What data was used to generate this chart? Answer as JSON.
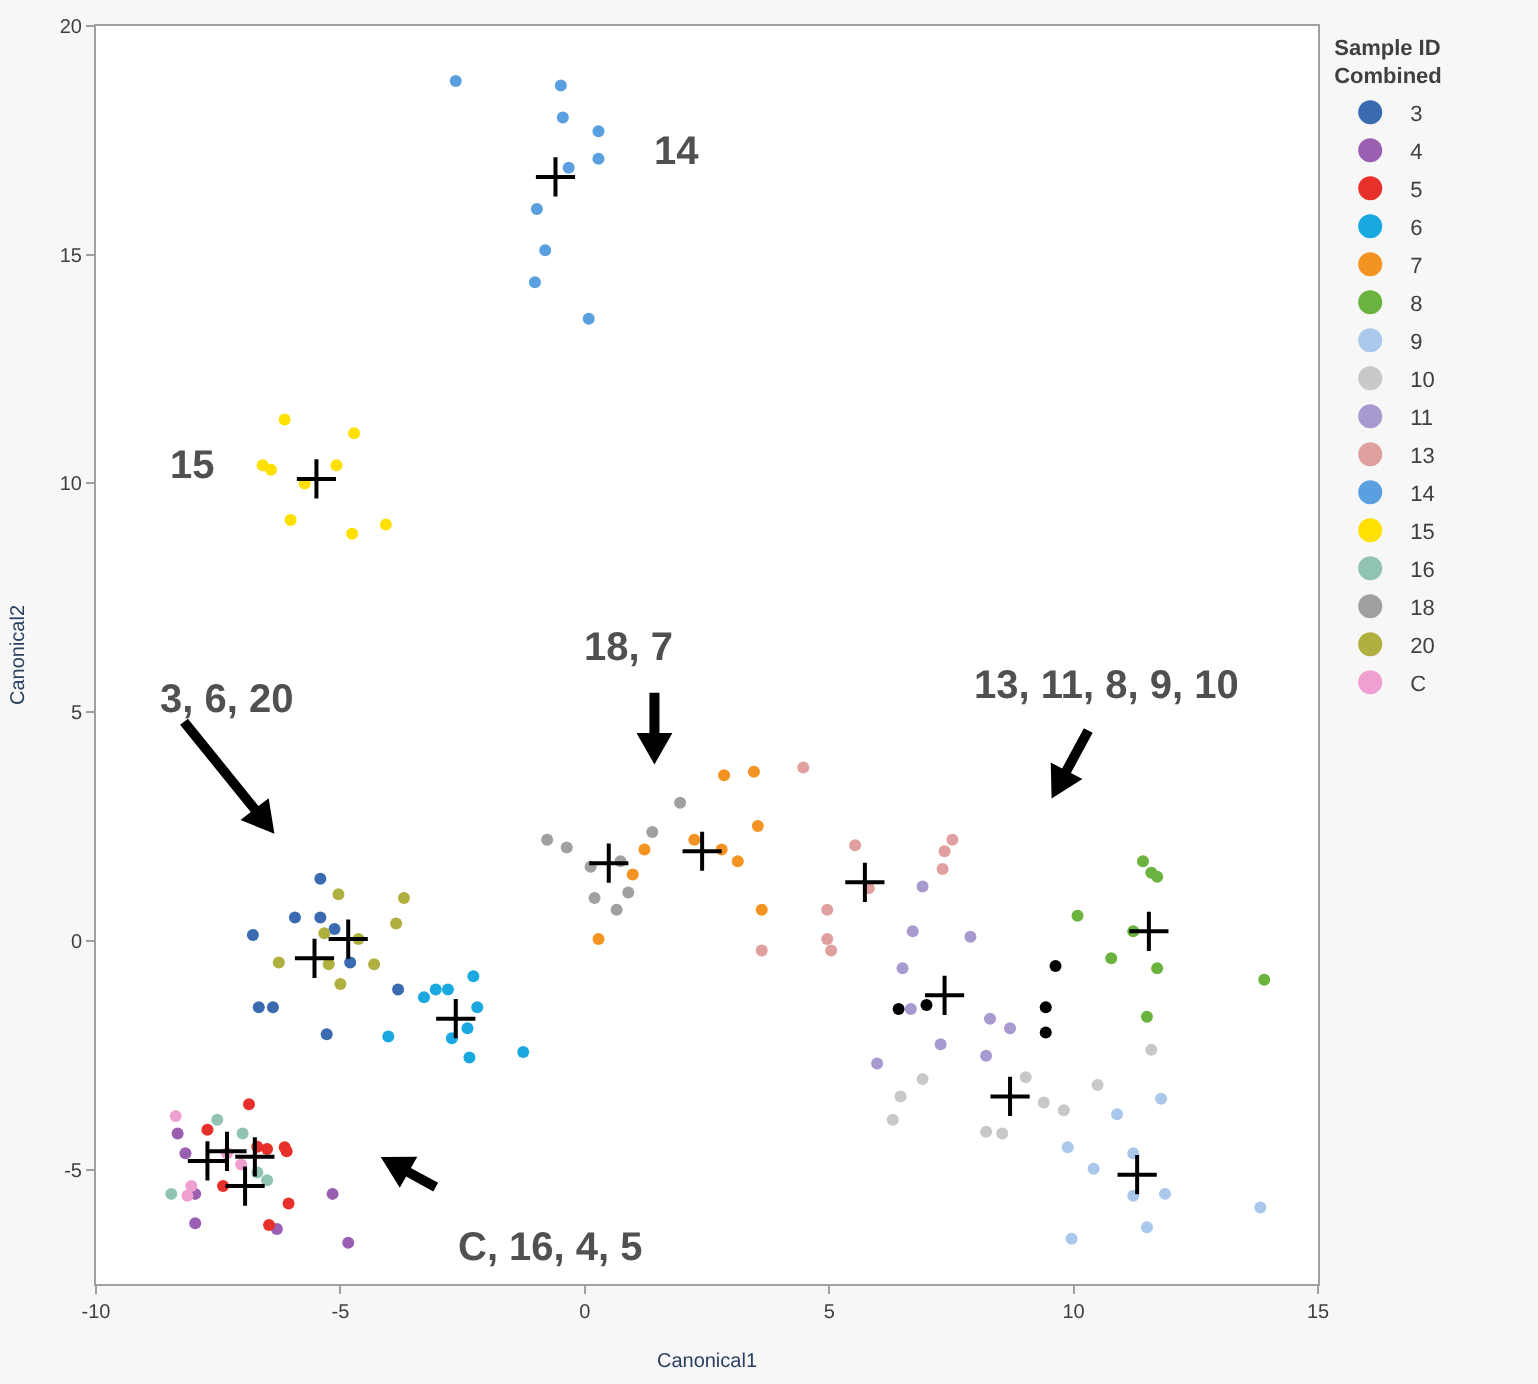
{
  "chart_data": {
    "type": "scatter",
    "xlabel": "Canonical1",
    "ylabel": "Canonical2",
    "legend_title": "Sample ID\nCombined",
    "legend": "top right",
    "marker": "circle",
    "xlim": [
      -10,
      15
    ],
    "xticks": [
      -10,
      -5,
      0,
      5,
      10,
      15
    ],
    "ylim": [
      -7.5,
      20
    ],
    "yticks": [
      -5,
      0,
      5,
      10,
      15,
      20
    ],
    "series": [
      {
        "name": "3",
        "color": "#3a6ab0",
        "x": [
          -5.41,
          -5.93,
          -5.41,
          -5.12,
          -6.79,
          -4.8,
          -3.82,
          -6.67,
          -6.38,
          -5.28
        ],
        "values": [
          1.36,
          0.51,
          0.51,
          0.26,
          0.13,
          -0.47,
          -1.06,
          -1.45,
          -1.45,
          -2.04
        ]
      },
      {
        "name": "4",
        "color": "#9a5fb0",
        "x": [
          -8.33,
          -8.17,
          -7.97,
          -7.97,
          -6.3,
          -5.16,
          -4.84
        ],
        "values": [
          -4.21,
          -4.64,
          -5.53,
          -6.17,
          -6.3,
          -5.53,
          -6.6
        ]
      },
      {
        "name": "5",
        "color": "#e8302a",
        "x": [
          -6.87,
          -7.72,
          -6.5,
          -6.14,
          -6.1,
          -7.4,
          -6.06,
          -6.46,
          -6.7
        ],
        "values": [
          -3.57,
          -4.13,
          -4.55,
          -4.51,
          -4.6,
          -5.36,
          -5.74,
          -6.21,
          -4.5
        ]
      },
      {
        "name": "6",
        "color": "#19a9e0",
        "x": [
          -2.28,
          -2.8,
          -3.05,
          -3.29,
          -2.2,
          -2.4,
          -2.72,
          -4.02,
          -2.36,
          -1.26
        ],
        "values": [
          -0.77,
          -1.06,
          -1.06,
          -1.23,
          -1.45,
          -1.91,
          -2.13,
          -2.09,
          -2.55,
          -2.43
        ]
      },
      {
        "name": "7",
        "color": "#f39422",
        "x": [
          2.85,
          3.46,
          1.22,
          0.98,
          2.24,
          2.8,
          3.13,
          3.54,
          3.62,
          0.28
        ],
        "values": [
          3.62,
          3.7,
          2.0,
          1.45,
          2.21,
          2.0,
          1.74,
          2.51,
          0.68,
          0.04
        ]
      },
      {
        "name": "8",
        "color": "#6ab33e",
        "x": [
          11.42,
          11.59,
          11.71,
          10.08,
          11.22,
          10.77,
          11.71,
          11.5,
          13.9
        ],
        "values": [
          1.74,
          1.49,
          1.4,
          0.55,
          0.21,
          -0.38,
          -0.6,
          -1.66,
          -0.85
        ]
      },
      {
        "name": "9",
        "color": "#a9c8ec",
        "x": [
          10.89,
          10.41,
          11.22,
          11.22,
          11.87,
          11.79,
          11.5,
          9.96,
          13.82,
          9.88
        ],
        "values": [
          -3.79,
          -4.98,
          -4.64,
          -5.57,
          -5.53,
          -3.45,
          -6.26,
          -6.51,
          -5.83,
          -4.51
        ]
      },
      {
        "name": "10",
        "color": "#c8c8c8",
        "x": [
          11.59,
          9.02,
          9.39,
          9.8,
          10.49,
          6.91,
          6.46,
          6.3,
          8.21,
          8.54
        ],
        "values": [
          -2.38,
          -2.98,
          -3.53,
          -3.7,
          -3.15,
          -3.02,
          -3.4,
          -3.91,
          -4.17,
          -4.21
        ]
      },
      {
        "name": "11",
        "color": "#a89ad0",
        "x": [
          6.91,
          6.71,
          7.89,
          6.5,
          6.67,
          7.28,
          5.98,
          8.21,
          8.29,
          8.7
        ],
        "values": [
          1.19,
          0.21,
          0.09,
          -0.6,
          -1.49,
          -2.26,
          -2.68,
          -2.51,
          -1.7,
          -1.91
        ]
      },
      {
        "name": "13",
        "color": "#e0a0a0",
        "x": [
          4.47,
          5.53,
          7.52,
          7.36,
          7.32,
          5.81,
          4.96,
          3.62,
          4.96,
          5.04
        ],
        "values": [
          3.79,
          2.09,
          2.21,
          1.96,
          1.57,
          1.15,
          0.68,
          -0.21,
          0.04,
          -0.21
        ]
      },
      {
        "name": "14",
        "color": "#5aa0e0",
        "x": [
          -2.64,
          -0.49,
          -0.45,
          0.28,
          0.28,
          -0.33,
          -0.98,
          -0.81,
          -1.02,
          0.08
        ],
        "values": [
          18.8,
          18.7,
          18.0,
          17.7,
          17.1,
          16.9,
          16.0,
          15.1,
          14.4,
          13.6
        ]
      },
      {
        "name": "15",
        "color": "#ffe000",
        "x": [
          -6.14,
          -4.72,
          -6.59,
          -6.42,
          -5.08,
          -5.73,
          -6.02,
          -4.76,
          -4.07
        ],
        "values": [
          11.4,
          11.1,
          10.4,
          10.3,
          10.4,
          10.0,
          9.2,
          8.9,
          9.1
        ]
      },
      {
        "name": "16",
        "color": "#90c4b0",
        "x": [
          -7.52,
          -7.0,
          -8.46,
          -6.5,
          -6.7
        ],
        "values": [
          -3.91,
          -4.21,
          -5.53,
          -5.23,
          -5.06
        ]
      },
      {
        "name": "18",
        "color": "#a0a0a0",
        "x": [
          -0.77,
          -0.37,
          0.12,
          0.73,
          1.38,
          1.95,
          0.2,
          0.65,
          0.89
        ],
        "values": [
          2.21,
          2.04,
          1.62,
          1.74,
          2.38,
          3.02,
          0.94,
          0.68,
          1.06
        ]
      },
      {
        "name": "20",
        "color": "#b0b040",
        "x": [
          -5.04,
          -3.7,
          -5.33,
          -4.63,
          -3.86,
          -6.26,
          -4.31,
          -5.24,
          -5.0
        ],
        "values": [
          1.02,
          0.94,
          0.17,
          0.04,
          0.38,
          -0.47,
          -0.51,
          -0.51,
          -0.94
        ]
      },
      {
        "name": "C",
        "color": "#f0a0d0",
        "x": [
          -8.37,
          -8.05,
          -8.13,
          -7.32,
          -7.03
        ],
        "values": [
          -3.83,
          -5.36,
          -5.57,
          -4.64,
          -4.89
        ]
      },
      {
        "color": "#000000",
        "x": [
          6.42,
          6.99,
          9.63,
          9.43,
          9.43
        ],
        "values": [
          -1.49,
          -1.4,
          -0.55,
          -1.45,
          -2.0
        ]
      },
      {
        "color": "#000000",
        "marker": "cross",
        "x": [
          -4.84,
          -7.72,
          -6.75,
          -2.64,
          2.4,
          11.54,
          11.3,
          8.7,
          7.36,
          5.73,
          -0.6,
          -5.49,
          -6.95,
          0.49,
          -5.53,
          -7.32
        ],
        "values": [
          0.04,
          -4.81,
          -4.72,
          -1.7,
          1.96,
          0.21,
          -5.11,
          -3.4,
          -1.19,
          1.28,
          16.7,
          10.1,
          -5.36,
          1.7,
          -0.38,
          -4.6
        ]
      }
    ],
    "annotations": [
      "14",
      "15",
      "3, 6, 20",
      "18, 7",
      "13, 11, 8, 9, 10",
      "C, 16, 4, 5"
    ]
  }
}
